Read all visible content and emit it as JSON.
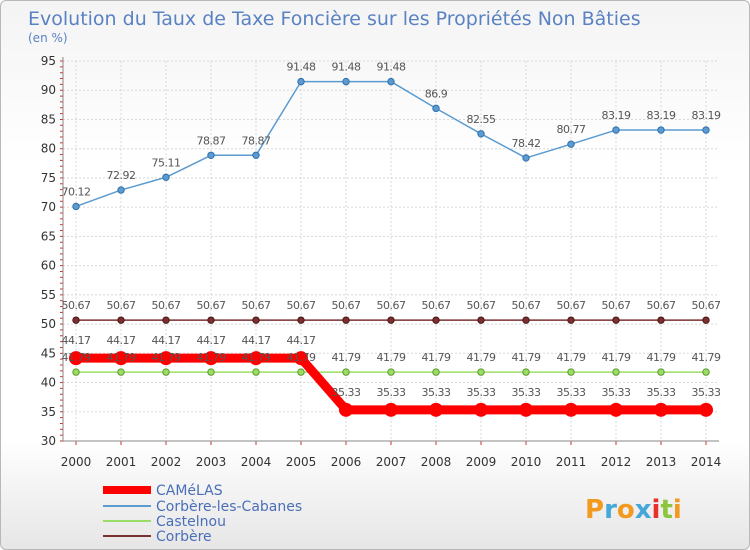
{
  "chart_data": {
    "type": "line",
    "title": "Evolution du Taux de Taxe Foncière sur les Propriétés Non Bâties",
    "subtitle": "(en %)",
    "x": [
      "2000",
      "2001",
      "2002",
      "2003",
      "2004",
      "2005",
      "2006",
      "2007",
      "2008",
      "2009",
      "2010",
      "2011",
      "2012",
      "2013",
      "2014"
    ],
    "ylim": [
      30,
      95
    ],
    "yticks": [
      30,
      35,
      40,
      45,
      50,
      55,
      60,
      65,
      70,
      75,
      80,
      85,
      90,
      95
    ],
    "grid": true,
    "legend_position": "bottom-left",
    "series": [
      {
        "name": "CAMéLAS",
        "color": "#ff0000",
        "values": [
          44.17,
          44.17,
          44.17,
          44.17,
          44.17,
          44.17,
          35.33,
          35.33,
          35.33,
          35.33,
          35.33,
          35.33,
          35.33,
          35.33,
          35.33
        ],
        "labels": [
          "44.17",
          "44.17",
          "44.17",
          "44.17",
          "44.17",
          "44.17",
          "35.33",
          "35.33",
          "35.33",
          "35.33",
          "35.33",
          "35.33",
          "35.33",
          "35.33",
          "35.33"
        ]
      },
      {
        "name": "Corbère-les-Cabanes",
        "color": "#5b9bd0",
        "values": [
          70.12,
          72.92,
          75.11,
          78.87,
          78.87,
          91.48,
          91.48,
          91.48,
          86.9,
          82.55,
          78.42,
          80.77,
          83.19,
          83.19,
          83.19
        ],
        "labels": [
          "70.12",
          "72.92",
          "75.11",
          "78.87",
          "78.87",
          "91.48",
          "91.48",
          "91.48",
          "86.9",
          "82.55",
          "78.42",
          "80.77",
          "83.19",
          "83.19",
          "83.19"
        ]
      },
      {
        "name": "Castelnou",
        "color": "#99dd66",
        "values": [
          41.79,
          41.79,
          41.79,
          41.79,
          41.79,
          41.79,
          41.79,
          41.79,
          41.79,
          41.79,
          41.79,
          41.79,
          41.79,
          41.79,
          41.79
        ],
        "labels": [
          "41.79",
          "41.79",
          "41.79",
          "41.79",
          "41.79",
          "41.79",
          "41.79",
          "41.79",
          "41.79",
          "41.79",
          "41.79",
          "41.79",
          "41.79",
          "41.79",
          "41.79"
        ]
      },
      {
        "name": "Corbère",
        "color": "#7a3030",
        "values": [
          50.67,
          50.67,
          50.67,
          50.67,
          50.67,
          50.67,
          50.67,
          50.67,
          50.67,
          50.67,
          50.67,
          50.67,
          50.67,
          50.67,
          50.67
        ],
        "labels": [
          "50.67",
          "50.67",
          "50.67",
          "50.67",
          "50.67",
          "50.67",
          "50.67",
          "50.67",
          "50.67",
          "50.67",
          "50.67",
          "50.67",
          "50.67",
          "50.67",
          "50.67"
        ]
      }
    ]
  },
  "logo": {
    "text": "Proxiti",
    "colors": [
      "#f29a1f",
      "#45a8d8",
      "#8cc63f",
      "#e9312b"
    ]
  }
}
